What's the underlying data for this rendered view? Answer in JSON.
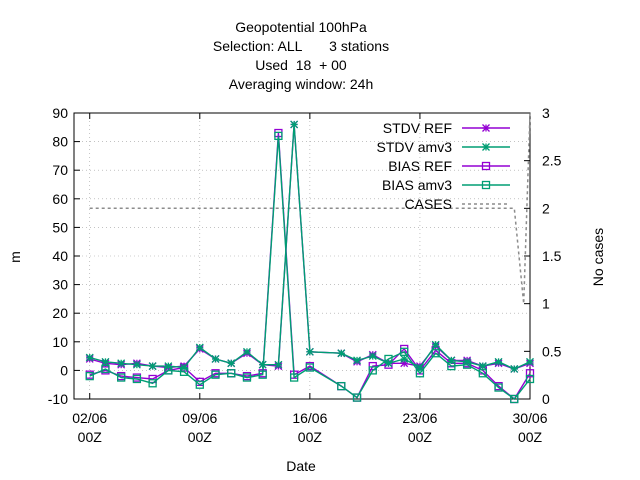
{
  "chart_data": {
    "type": "line",
    "title_lines": [
      "Geopotential 100hPa",
      "Selection: ALL       3 stations",
      "Used  18  + 00",
      "Averaging window: 24h"
    ],
    "xlabel": "Date",
    "ylabel": "m",
    "y2label": "No cases",
    "xlim": [
      1,
      30
    ],
    "ylim": [
      -10,
      90
    ],
    "y2lim": [
      0,
      3
    ],
    "x_ticks": [
      {
        "x": 2,
        "label1": "02/06",
        "label2": "00Z"
      },
      {
        "x": 9,
        "label1": "09/06",
        "label2": "00Z"
      },
      {
        "x": 16,
        "label1": "16/06",
        "label2": "00Z"
      },
      {
        "x": 23,
        "label1": "23/06",
        "label2": "00Z"
      },
      {
        "x": 30,
        "label1": "30/06",
        "label2": "00Z"
      }
    ],
    "y_ticks": [
      "-10",
      "0",
      "10",
      "20",
      "30",
      "40",
      "50",
      "60",
      "70",
      "80",
      "90"
    ],
    "y2_ticks": [
      "0",
      "0.5",
      "1",
      "1.5",
      "2",
      "2.5",
      "3"
    ],
    "grid": true,
    "legend_position": "top-right",
    "colors": {
      "stdv_ref": "#9400d3",
      "stdv_amv3": "#009e73",
      "bias_ref": "#9400d3",
      "bias_amv3": "#009e73",
      "cases": "#8c8c8c"
    },
    "series": [
      {
        "key": "stdv_ref",
        "name": "STDV REF",
        "marker": "star",
        "x": [
          2,
          3,
          4,
          5,
          6,
          7,
          8,
          9,
          10,
          11,
          12,
          13,
          14,
          15,
          16,
          18,
          19,
          20,
          21,
          22,
          23,
          24,
          25,
          26,
          27,
          28,
          29,
          30
        ],
        "y": [
          4,
          2.5,
          2,
          2.5,
          1.5,
          1,
          1.5,
          7.5,
          4,
          2.5,
          6,
          2,
          1.5,
          86,
          6.5,
          6,
          3,
          5.5,
          2.5,
          2.5,
          1.5,
          8.5,
          3.5,
          3.5,
          1.5,
          2.5,
          0.5,
          2.5
        ]
      },
      {
        "key": "stdv_amv3",
        "name": "STDV amv3",
        "marker": "star",
        "x": [
          2,
          3,
          4,
          5,
          6,
          7,
          8,
          9,
          10,
          11,
          12,
          13,
          14,
          15,
          16,
          18,
          19,
          20,
          21,
          22,
          23,
          24,
          25,
          26,
          27,
          28,
          29,
          30
        ],
        "y": [
          4.5,
          3,
          2.5,
          2,
          1.5,
          1.5,
          1,
          8,
          4,
          2.5,
          6.5,
          2,
          2,
          86,
          6.5,
          6,
          3.5,
          5,
          2.5,
          4,
          1,
          9,
          3.5,
          3,
          1.5,
          3,
          0.5,
          3
        ]
      },
      {
        "key": "bias_ref",
        "name": "BIAS REF",
        "marker": "square",
        "x": [
          2,
          3,
          4,
          5,
          6,
          7,
          8,
          9,
          10,
          11,
          12,
          13,
          14,
          15,
          16,
          18,
          19,
          20,
          21,
          22,
          23,
          24,
          25,
          26,
          27,
          28,
          29,
          30
        ],
        "y": [
          -1.5,
          0,
          -2,
          -2.5,
          -3,
          0,
          1,
          -4,
          -1,
          -1,
          -2,
          -1,
          83,
          -1.5,
          1.5,
          -5.5,
          -9.5,
          1.5,
          2,
          7.5,
          0,
          7,
          2.5,
          2.5,
          0,
          -5.5,
          -10,
          -1
        ]
      },
      {
        "key": "bias_amv3",
        "name": "BIAS amv3",
        "marker": "square",
        "x": [
          2,
          3,
          4,
          5,
          6,
          7,
          8,
          9,
          10,
          11,
          12,
          13,
          14,
          15,
          16,
          18,
          19,
          20,
          21,
          22,
          23,
          24,
          25,
          26,
          27,
          28,
          29,
          30
        ],
        "y": [
          -2,
          0.5,
          -2.5,
          -3,
          -4.5,
          0,
          -0.5,
          -5,
          -1.5,
          -1,
          -2.5,
          -1.5,
          82,
          -2.5,
          1,
          -5.5,
          -9.5,
          0,
          4,
          6.5,
          -1,
          6,
          1.5,
          2,
          -1,
          -6,
          -10,
          -3
        ]
      },
      {
        "key": "cases",
        "name": "CASES",
        "marker": "none",
        "axis": "y2",
        "x": [
          2,
          29,
          29.6,
          30
        ],
        "y": [
          2,
          2,
          1,
          3
        ]
      }
    ]
  }
}
